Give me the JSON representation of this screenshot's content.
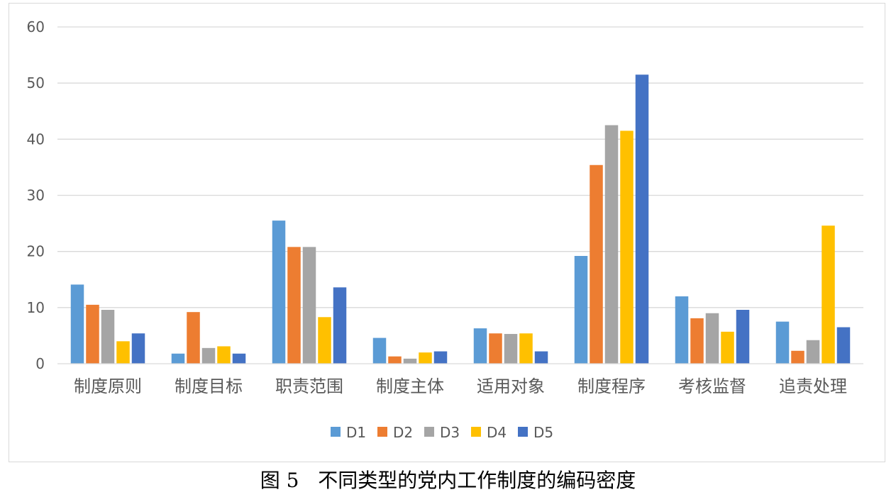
{
  "chart_data": {
    "type": "bar",
    "categories": [
      "制度原则",
      "制度目标",
      "职责范围",
      "制度主体",
      "适用对象",
      "制度程序",
      "考核监督",
      "追责处理"
    ],
    "series": [
      {
        "name": "D1",
        "color": "#5B9BD5",
        "values": [
          14.1,
          1.8,
          25.5,
          4.6,
          6.3,
          19.2,
          12.0,
          7.5
        ]
      },
      {
        "name": "D2",
        "color": "#ED7D31",
        "values": [
          10.5,
          9.2,
          20.8,
          1.3,
          5.4,
          35.4,
          8.1,
          2.3
        ]
      },
      {
        "name": "D3",
        "color": "#A5A5A5",
        "values": [
          9.6,
          2.8,
          20.8,
          0.9,
          5.3,
          42.5,
          9.0,
          4.2
        ]
      },
      {
        "name": "D4",
        "color": "#FFC000",
        "values": [
          4.0,
          3.1,
          8.3,
          2.0,
          5.4,
          41.5,
          5.7,
          24.6
        ]
      },
      {
        "name": "D5",
        "color": "#4472C4",
        "values": [
          5.4,
          1.8,
          13.6,
          2.2,
          2.2,
          51.5,
          9.6,
          6.5
        ]
      }
    ],
    "ylim": [
      0,
      60
    ],
    "yticks": [
      0,
      10,
      20,
      30,
      40,
      50,
      60
    ],
    "grid": true,
    "legend": "bottom"
  },
  "caption": {
    "figure_no": "图 5",
    "text": "不同类型的党内工作制度的编码密度"
  }
}
